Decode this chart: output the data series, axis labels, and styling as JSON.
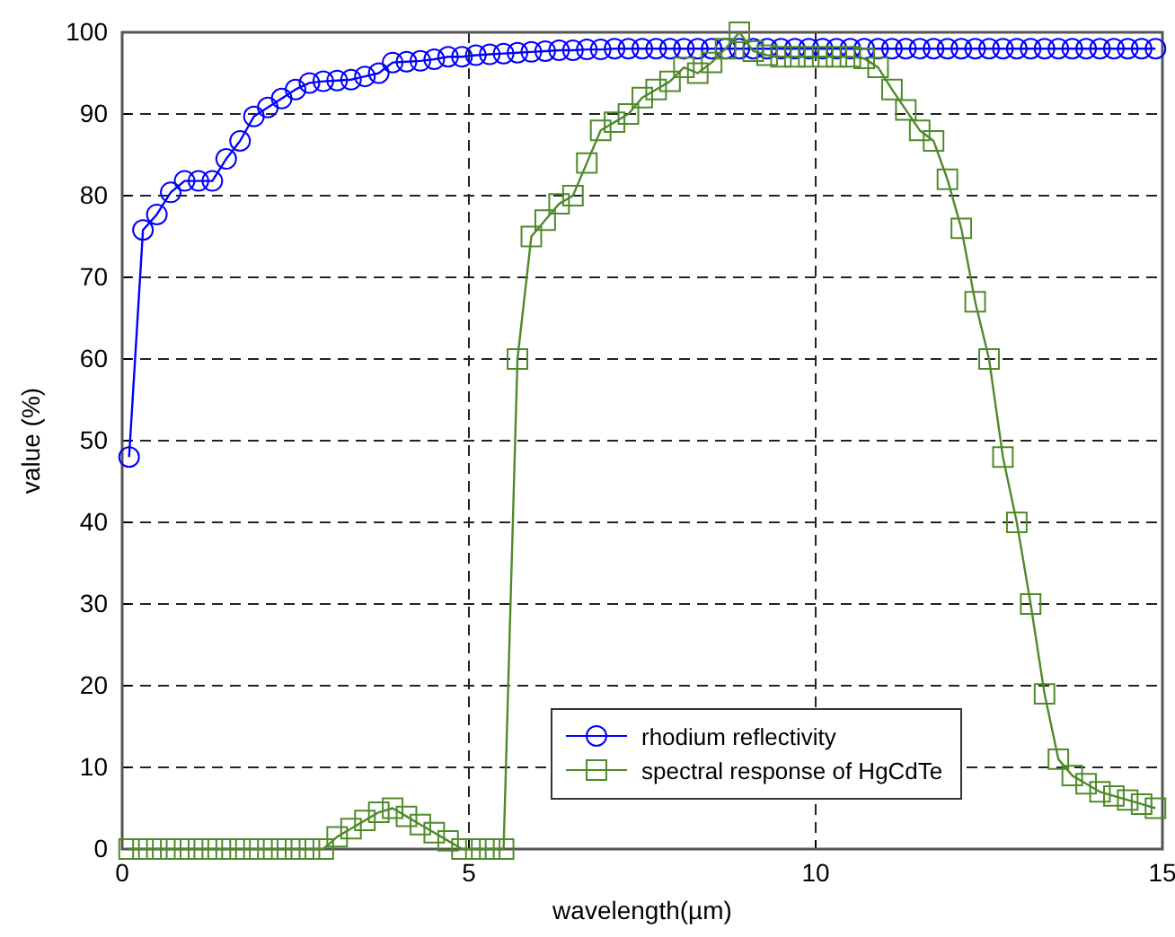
{
  "chart_data": {
    "type": "line",
    "xlabel": "wavelength(µm)",
    "ylabel": "value (%)",
    "x": [
      0.1,
      0.3,
      0.5,
      0.7,
      0.9,
      1.1,
      1.3,
      1.5,
      1.7,
      1.9,
      2.1,
      2.3,
      2.5,
      2.7,
      2.9,
      3.1,
      3.3,
      3.5,
      3.7,
      3.9,
      4.1,
      4.3,
      4.5,
      4.7,
      4.9,
      5.1,
      5.3,
      5.5,
      5.7,
      5.9,
      6.1,
      6.3,
      6.5,
      6.7,
      6.9,
      7.1,
      7.3,
      7.5,
      7.7,
      7.9,
      8.1,
      8.3,
      8.5,
      8.7,
      8.9,
      9.1,
      9.3,
      9.5,
      9.7,
      9.9,
      10.1,
      10.3,
      10.5,
      10.7,
      10.9,
      11.1,
      11.3,
      11.5,
      11.7,
      11.9,
      12.1,
      12.3,
      12.5,
      12.7,
      12.9,
      13.1,
      13.3,
      13.5,
      13.7,
      13.9,
      14.1,
      14.3,
      14.5,
      14.7,
      14.9
    ],
    "series": [
      {
        "name": "rhodium reflectivity",
        "color": "#0000ff",
        "marker": "circle",
        "values": [
          48,
          75.8,
          77.7,
          80.4,
          81.8,
          81.8,
          81.8,
          84.5,
          86.7,
          89.7,
          90.8,
          91.9,
          93,
          93.8,
          94,
          94.1,
          94.2,
          94.6,
          95,
          96.3,
          96.4,
          96.5,
          96.7,
          97,
          97,
          97.2,
          97.3,
          97.4,
          97.5,
          97.6,
          97.7,
          97.8,
          97.8,
          97.9,
          97.9,
          98,
          98,
          98,
          98,
          98,
          98,
          98,
          98,
          98,
          98,
          98,
          98,
          98,
          98,
          98,
          98,
          98,
          98,
          98,
          98,
          98,
          98,
          98,
          98,
          98,
          98,
          98,
          98,
          98,
          98,
          98,
          98,
          98,
          98,
          98,
          98,
          98,
          98,
          98,
          98
        ]
      },
      {
        "name": "spectral response of HgCdTe",
        "color": "#4f8a2a",
        "marker": "square",
        "values": [
          0,
          0,
          0,
          0,
          0,
          0,
          0,
          0,
          0,
          0,
          0,
          0,
          0,
          0,
          0,
          1.5,
          2.5,
          3.5,
          4.5,
          5,
          4,
          3,
          2,
          1,
          0,
          0,
          0,
          0,
          60,
          75,
          77,
          79,
          80,
          84,
          88,
          89,
          90,
          92,
          93,
          94,
          95.7,
          95,
          96.3,
          98,
          100,
          97.7,
          97.2,
          97,
          97,
          97,
          97,
          97,
          97,
          96.8,
          95.7,
          93,
          90.5,
          88,
          86.7,
          82,
          76,
          67,
          60,
          48,
          40,
          30,
          19,
          11,
          9,
          8,
          7,
          6.5,
          6,
          5.5,
          5
        ]
      }
    ],
    "xlim": [
      0,
      15
    ],
    "xticks": [
      0,
      5,
      10,
      15
    ],
    "ylim": [
      0,
      100
    ],
    "yticks": [
      0,
      10,
      20,
      30,
      40,
      50,
      60,
      70,
      80,
      90,
      100
    ],
    "grid": true,
    "legend": "bottom right",
    "line_style": "solid"
  }
}
